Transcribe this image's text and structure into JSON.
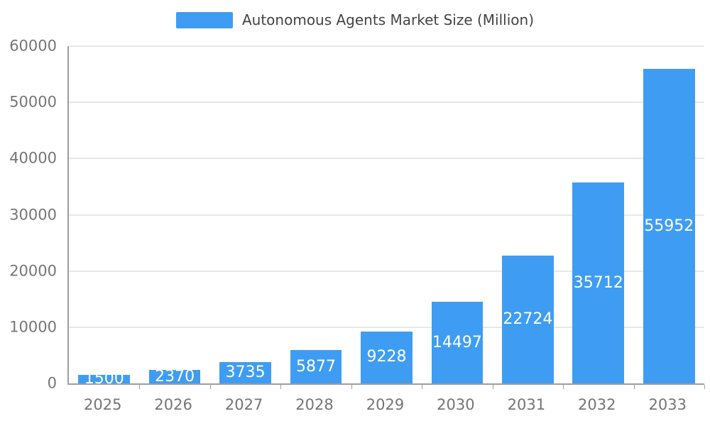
{
  "chart_data": {
    "type": "bar",
    "title": "Autonomous Agents Market Size (Million)",
    "categories": [
      "2025",
      "2026",
      "2027",
      "2028",
      "2029",
      "2030",
      "2031",
      "2032",
      "2033"
    ],
    "values": [
      1500,
      2370,
      3735,
      5877,
      9228,
      14497,
      22724,
      35712,
      55952
    ],
    "xlabel": "",
    "ylabel": "",
    "ylim": [
      0,
      60000
    ],
    "yticks": [
      0,
      10000,
      20000,
      30000,
      40000,
      50000,
      60000
    ],
    "grid": "horizontal",
    "legend_position": "top-center",
    "bar_color": "#3E9DF3",
    "bar_label_color": "#ffffff",
    "axis_text_color": "#757575",
    "title_text_color": "#444444",
    "grid_color": "#e8e8e8",
    "axis_line_color": "#9e9e9e"
  }
}
